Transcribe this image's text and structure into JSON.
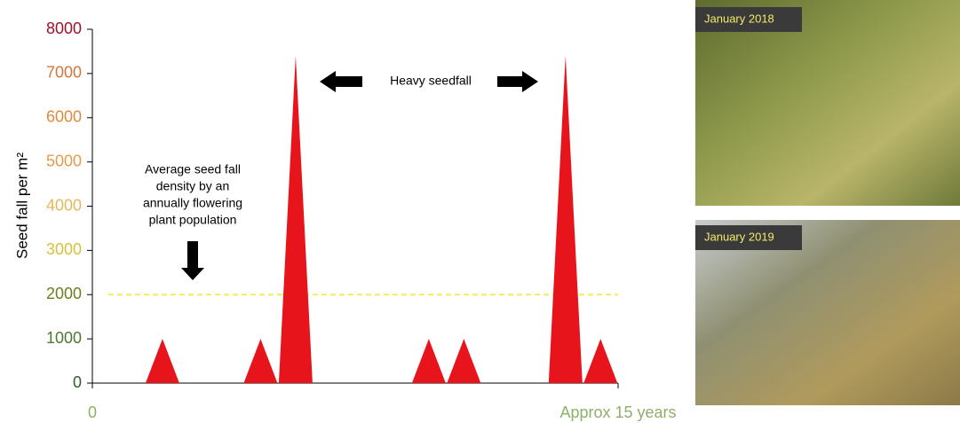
{
  "chart_data": {
    "type": "spike",
    "y_label": "Seed fall per m²",
    "x": [
      2,
      4.8,
      5.8,
      9.6,
      10.6,
      13.5,
      14.5
    ],
    "values": [
      1000,
      1000,
      7400,
      1000,
      1000,
      7400,
      1000
    ],
    "color": "#e8141b",
    "xlim": [
      0,
      15
    ],
    "xticks": [
      {
        "value": 0,
        "label": "0"
      },
      {
        "value": 15,
        "label": "Approx 15 years"
      }
    ],
    "xtick_color": "#8db06a",
    "ylim": [
      0,
      8000
    ],
    "yticks": [
      0,
      1000,
      2000,
      3000,
      4000,
      5000,
      6000,
      7000,
      8000
    ],
    "ytick_colors": [
      "#2e5d2a",
      "#4b7a2c",
      "#6b7f1e",
      "#d6c43a",
      "#e7b85a",
      "#e59b4a",
      "#e08a3c",
      "#d8763a",
      "#a3122a"
    ],
    "reference_line": {
      "value": 2000,
      "color": "#f2ec5a"
    },
    "annotations": {
      "heavy": "Heavy seedfall",
      "average": [
        "Average seed fall",
        "density by an",
        "annually flowering",
        "plant population"
      ]
    },
    "photos": [
      "January 2018",
      "January 2019"
    ]
  }
}
